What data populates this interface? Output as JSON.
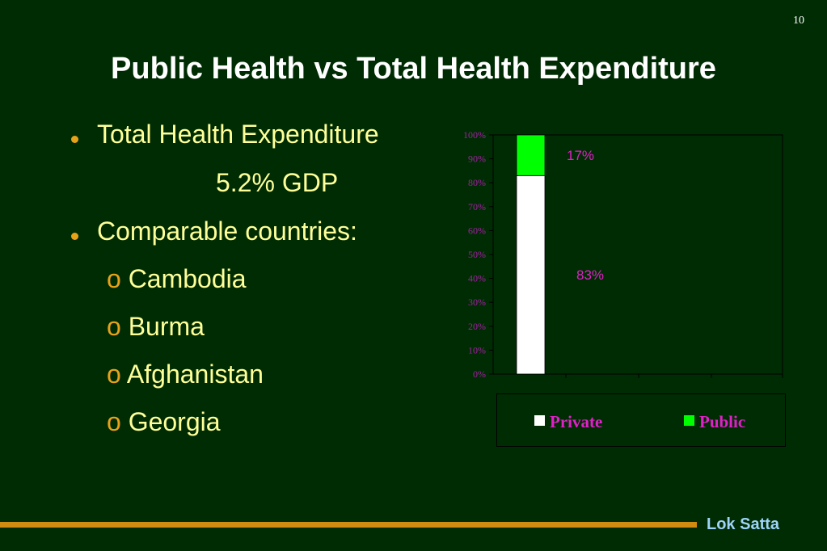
{
  "slide_number": "10",
  "title": "Public Health vs Total Health Expenditure",
  "bullets": [
    {
      "text": "Total Health Expenditure",
      "detail": "5.2% GDP"
    },
    {
      "text": "Comparable countries:",
      "sub_marker": "o",
      "sub_items": [
        "Cambodia",
        "Burma",
        "Afghanistan",
        "Georgia"
      ]
    }
  ],
  "colors": {
    "background": "#002c03",
    "title": "#ffffff",
    "bullet_text": "#ffff99",
    "bullet_marker": "#e8a21a",
    "private": "#ffffff",
    "public": "#00ff00",
    "labels": "#e020c8"
  },
  "chart_data": {
    "type": "bar",
    "stacked": true,
    "categories": [
      ""
    ],
    "series": [
      {
        "name": "Private",
        "values": [
          83
        ],
        "label": "83%",
        "color": "#ffffff"
      },
      {
        "name": "Public",
        "values": [
          17
        ],
        "label": "17%",
        "color": "#00ff00"
      }
    ],
    "y_ticks": [
      "0%",
      "10%",
      "20%",
      "30%",
      "40%",
      "50%",
      "60%",
      "70%",
      "80%",
      "90%",
      "100%"
    ],
    "ylim": [
      0,
      100
    ],
    "grid": false,
    "legend_position": "bottom"
  },
  "footer": {
    "brand": "Lok Satta"
  }
}
